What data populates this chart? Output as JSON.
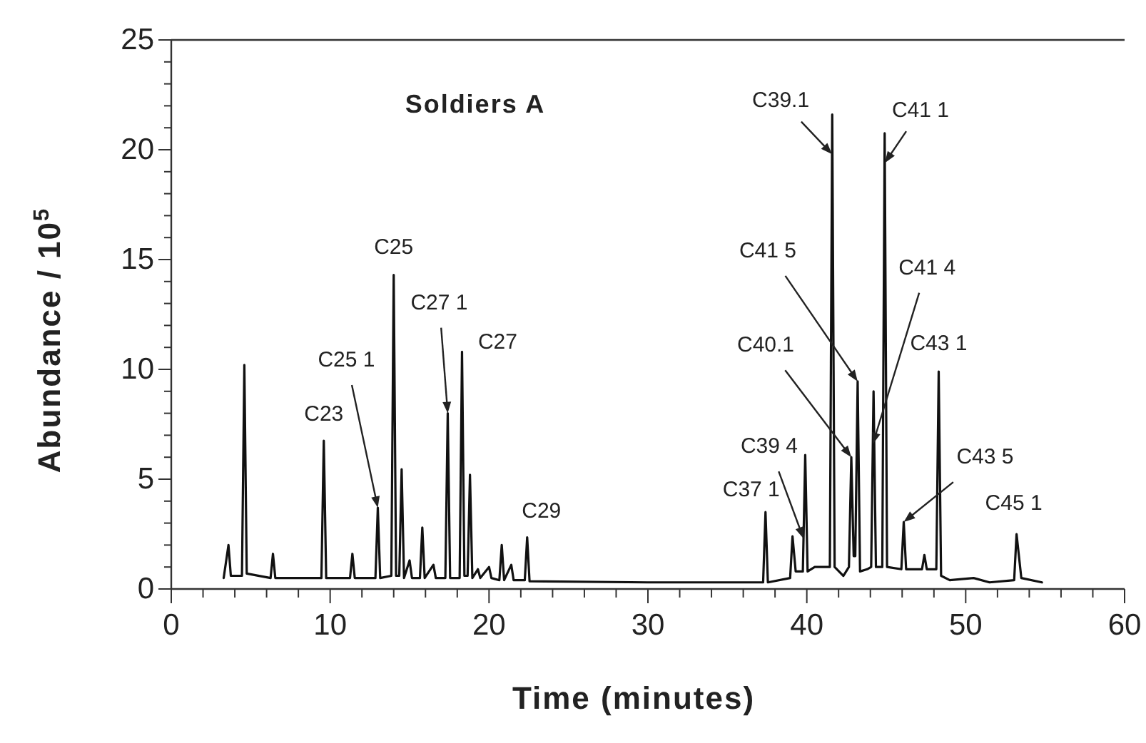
{
  "chart_data": {
    "type": "line",
    "title": "Soldiers A",
    "xlabel": "Time (minutes)",
    "ylabel": "Abundance / 10$^{5}$",
    "xlim": [
      0,
      60
    ],
    "ylim": [
      0,
      25
    ],
    "xticks": [
      0,
      {
        "value": 2,
        "label": null
      },
      {
        "value": 4,
        "label": null
      },
      {
        "value": 6,
        "label": null
      },
      {
        "value": 8,
        "label": null
      },
      10,
      {
        "value": 12,
        "label": null
      },
      {
        "value": 14,
        "label": null
      },
      {
        "value": 16,
        "label": null
      },
      {
        "value": 18,
        "label": null
      },
      20,
      {
        "value": 22,
        "label": null
      },
      {
        "value": 24,
        "label": null
      },
      {
        "value": 26,
        "label": null
      },
      {
        "value": 28,
        "label": null
      },
      30,
      {
        "value": 32,
        "label": null
      },
      {
        "value": 34,
        "label": null
      },
      {
        "value": 36,
        "label": null
      },
      {
        "value": 38,
        "label": null
      },
      40,
      {
        "value": 42,
        "label": null
      },
      {
        "value": 44,
        "label": null
      },
      {
        "value": 46,
        "label": null
      },
      {
        "value": 48,
        "label": null
      },
      50,
      {
        "value": 52,
        "label": null
      },
      {
        "value": 54,
        "label": null
      },
      {
        "value": 56,
        "label": null
      },
      {
        "value": 58,
        "label": null
      },
      60
    ],
    "yticks": [
      0,
      {
        "value": 1,
        "label": null
      },
      {
        "value": 2,
        "label": null
      },
      {
        "value": 3,
        "label": null
      },
      {
        "value": 4,
        "label": null
      },
      5,
      {
        "value": 6,
        "label": null
      },
      {
        "value": 7,
        "label": null
      },
      {
        "value": 8,
        "label": null
      },
      {
        "value": 9,
        "label": null
      },
      10,
      {
        "value": 11,
        "label": null
      },
      {
        "value": 12,
        "label": null
      },
      {
        "value": 13,
        "label": null
      },
      {
        "value": 14,
        "label": null
      },
      15,
      {
        "value": 16,
        "label": null
      },
      {
        "value": 17,
        "label": null
      },
      {
        "value": 18,
        "label": null
      },
      {
        "value": 19,
        "label": null
      },
      20,
      {
        "value": 21,
        "label": null
      },
      {
        "value": 22,
        "label": null
      },
      {
        "value": 23,
        "label": null
      },
      {
        "value": 24,
        "label": null
      },
      25
    ],
    "grid": false,
    "marker": "none",
    "line_style": "solid",
    "series": [
      {
        "color": "#111111",
        "x": [
          3.3,
          3.6,
          3.75,
          4.45,
          4.6,
          4.75,
          6.25,
          6.4,
          6.55,
          9.45,
          9.6,
          9.75,
          11.25,
          11.4,
          11.55,
          12.85,
          13.0,
          13.15,
          13.85,
          14.0,
          14.15,
          14.35,
          14.5,
          14.65,
          15.0,
          15.15,
          15.65,
          15.8,
          15.95,
          16.5,
          16.65,
          17.25,
          17.4,
          17.55,
          18.15,
          18.3,
          18.45,
          18.65,
          18.8,
          18.95,
          19.3,
          19.45,
          20.0,
          20.15,
          20.65,
          20.8,
          20.95,
          21.4,
          21.55,
          22.25,
          22.4,
          22.55,
          30,
          37.25,
          37.4,
          37.55,
          38.95,
          39.1,
          39.3,
          39.75,
          39.9,
          40.05,
          40.5,
          41.45,
          41.6,
          41.75,
          42.3,
          42.65,
          42.8,
          42.95,
          43.05,
          43.2,
          43.35,
          43.8,
          44.05,
          44.2,
          44.35,
          44.75,
          44.9,
          45.05,
          45.95,
          46.1,
          46.25,
          47.25,
          47.4,
          47.55,
          48.15,
          48.3,
          48.45,
          49,
          50.5,
          51.5,
          53.05,
          53.2,
          53.5,
          54.8
        ],
        "values": [
          0.5,
          2.0,
          0.6,
          0.6,
          10.2,
          0.7,
          0.5,
          1.6,
          0.5,
          0.5,
          6.75,
          0.5,
          0.5,
          1.6,
          0.5,
          0.5,
          3.7,
          0.5,
          0.6,
          14.3,
          0.6,
          0.6,
          5.45,
          0.5,
          1.3,
          0.5,
          0.5,
          2.8,
          0.5,
          1.1,
          0.5,
          0.5,
          8.0,
          0.5,
          0.5,
          10.8,
          0.6,
          0.6,
          5.2,
          0.5,
          0.9,
          0.5,
          1.0,
          0.5,
          0.4,
          2.0,
          0.4,
          1.1,
          0.4,
          0.4,
          2.35,
          0.35,
          0.3,
          0.3,
          3.5,
          0.3,
          0.5,
          2.4,
          0.8,
          0.8,
          6.1,
          0.8,
          1.0,
          1.0,
          21.6,
          1.0,
          0.6,
          1.0,
          6.0,
          1.5,
          1.5,
          9.45,
          0.8,
          0.9,
          1.0,
          9.0,
          1.0,
          1.0,
          20.75,
          1.0,
          0.9,
          3.05,
          0.9,
          0.9,
          1.55,
          0.9,
          0.9,
          9.9,
          0.6,
          0.4,
          0.5,
          0.3,
          0.4,
          2.5,
          0.5,
          0.3
        ]
      }
    ],
    "annotations": [
      {
        "text": "C23",
        "x": 9.6,
        "y": 6.75
      },
      {
        "text": "C25 1",
        "x": 13.0,
        "y": 3.7
      },
      {
        "text": "C25",
        "x": 14.0,
        "y": 14.3
      },
      {
        "text": "C27 1",
        "x": 17.4,
        "y": 8.0
      },
      {
        "text": "C27",
        "x": 18.3,
        "y": 10.8
      },
      {
        "text": "C29",
        "x": 22.4,
        "y": 2.35
      },
      {
        "text": "C37 1",
        "x": 37.4,
        "y": 3.5
      },
      {
        "text": "C39 4",
        "x": 39.79,
        "y": 2.3
      },
      {
        "text": "C39.1",
        "x": 41.59,
        "y": 19.8
      },
      {
        "text": "C41 1",
        "x": 44.91,
        "y": 19.4
      },
      {
        "text": "C41 5",
        "x": 43.2,
        "y": 9.45
      },
      {
        "text": "C41 4",
        "x": 44.155,
        "y": 6.6
      },
      {
        "text": "C40.1",
        "x": 42.8,
        "y": 6.0
      },
      {
        "text": "C43 1",
        "x": 48.3,
        "y": 9.9
      },
      {
        "text": "C43 5",
        "x": 46.1,
        "y": 3.05
      },
      {
        "text": "C45 1",
        "x": 53.2,
        "y": 2.5
      }
    ]
  }
}
